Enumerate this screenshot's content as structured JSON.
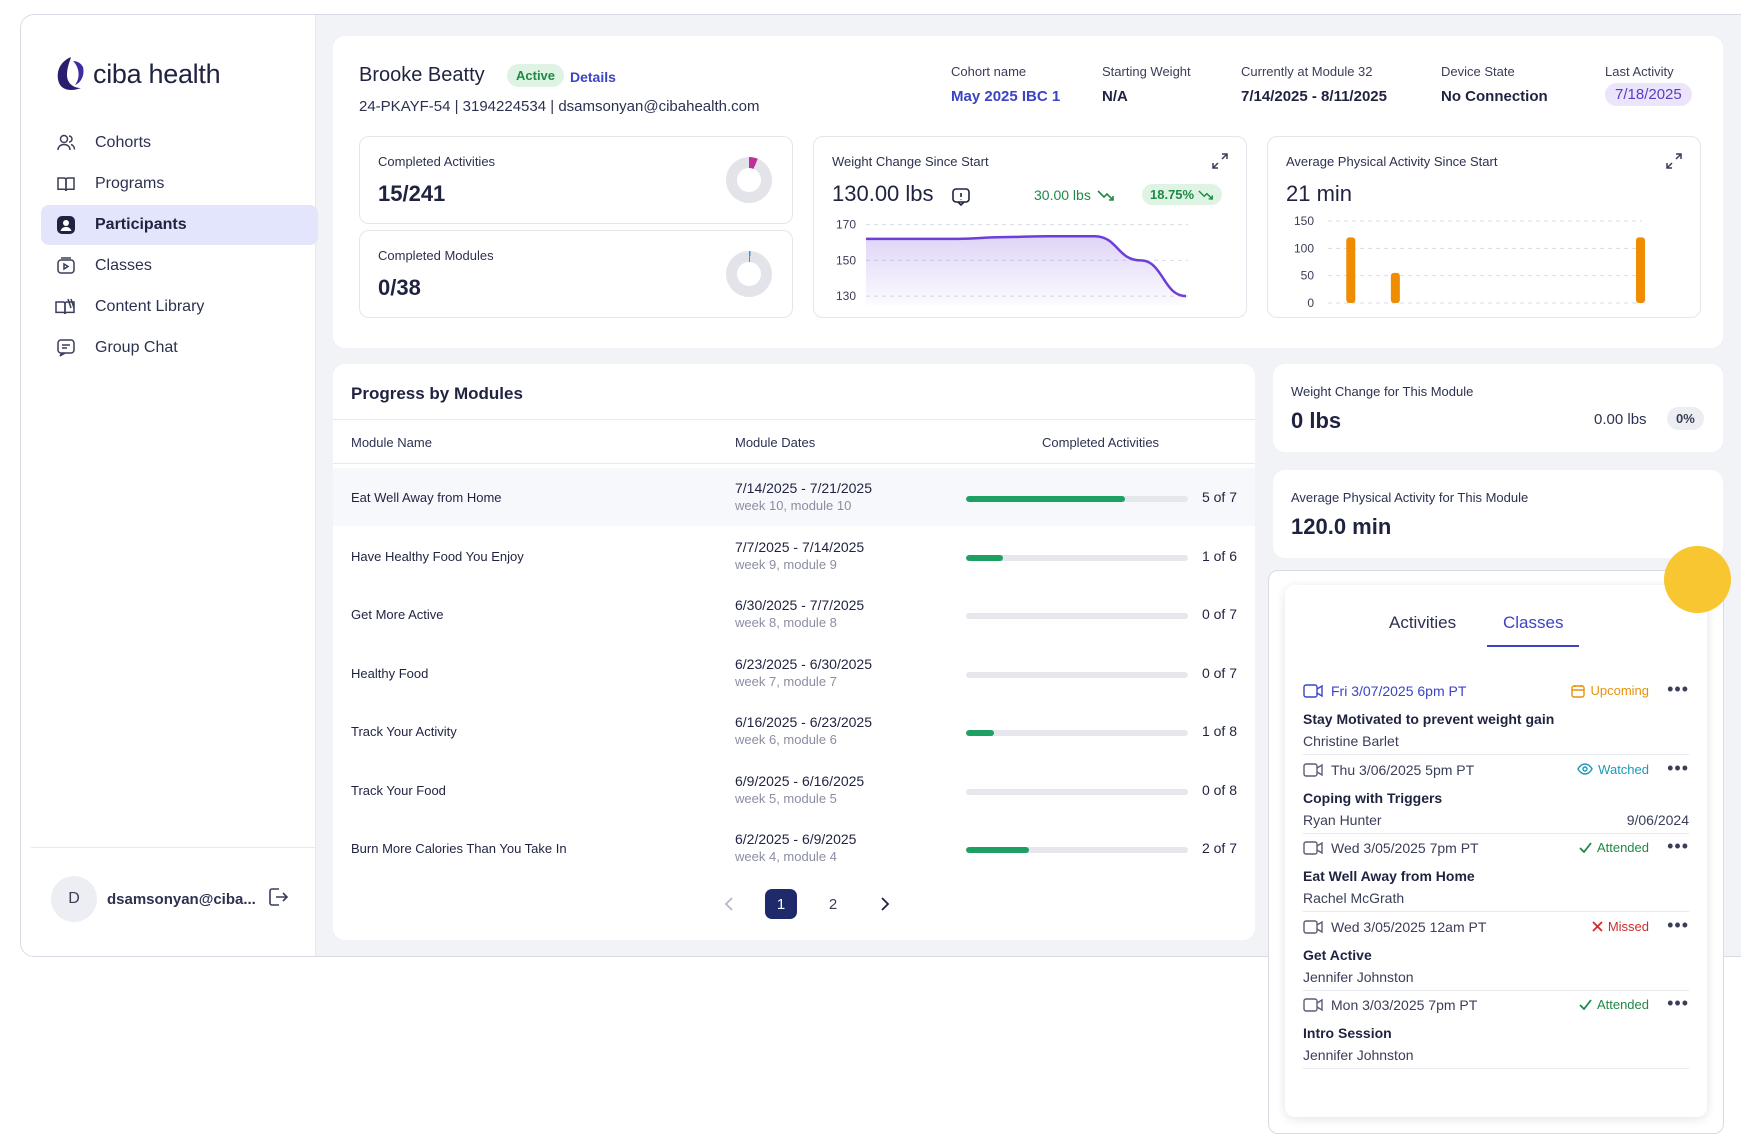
{
  "brand": {
    "name": "ciba health"
  },
  "nav": [
    {
      "label": "Cohorts",
      "icon": "users-icon",
      "active": false
    },
    {
      "label": "Programs",
      "icon": "book-icon",
      "active": false
    },
    {
      "label": "Participants",
      "icon": "user-circle-icon",
      "active": true
    },
    {
      "label": "Classes",
      "icon": "video-icon",
      "active": false
    },
    {
      "label": "Content Library",
      "icon": "library-icon",
      "active": false
    },
    {
      "label": "Group Chat",
      "icon": "chat-icon",
      "active": false
    }
  ],
  "user": {
    "initial": "D",
    "email": "dsamsonyan@ciba..."
  },
  "participant": {
    "name": "Brooke Beatty",
    "status": "Active",
    "details_label": "Details",
    "info": "24-PKAYF-54 | 3194224534 | dsamsonyan@cibahealth.com"
  },
  "meta": {
    "cohort_label": "Cohort name",
    "cohort_value": "May 2025 IBC 1",
    "weight_label": "Starting Weight",
    "weight_value": "N/A",
    "module_label": "Currently at Module 32",
    "module_value": "7/14/2025 - 8/11/2025",
    "device_label": "Device State",
    "device_value": "No Connection",
    "last_label": "Last Activity",
    "last_value": "7/18/2025"
  },
  "stats": {
    "activities_label": "Completed Activities",
    "activities_value": "15/241",
    "activities_fraction": 0.062,
    "modules_label": "Completed Modules",
    "modules_value": "0/38",
    "modules_fraction": 0.01
  },
  "weight_chart": {
    "label": "Weight Change Since Start",
    "value": "130.00 lbs",
    "change": "30.00 lbs",
    "percent": "18.75%",
    "ticks": [
      "170",
      "150",
      "130"
    ]
  },
  "activity_chart": {
    "label": "Average Physical Activity Since Start",
    "value": "21 min",
    "ticks": [
      "150",
      "100",
      "50",
      "0"
    ]
  },
  "chart_data": [
    {
      "type": "area",
      "title": "Weight Change Since Start",
      "x": [
        0,
        1,
        2,
        3,
        4,
        5,
        6,
        7
      ],
      "y": [
        162,
        162,
        162,
        163,
        163.5,
        163.5,
        150,
        130
      ],
      "ylim": [
        125,
        172
      ],
      "yticks": [
        170,
        150,
        130
      ],
      "color": "#6d3fd8"
    },
    {
      "type": "bar",
      "title": "Average Physical Activity Since Start",
      "x": [
        0,
        1,
        2,
        3,
        4,
        5,
        6,
        7,
        8,
        9,
        10,
        11,
        12,
        13,
        14
      ],
      "values": [
        0,
        120,
        0,
        55,
        0,
        0,
        0,
        0,
        0,
        0,
        0,
        0,
        0,
        0,
        120
      ],
      "ylim": [
        0,
        150
      ],
      "yticks": [
        150,
        100,
        50,
        0
      ],
      "color": "#f08c00"
    }
  ],
  "progress": {
    "title": "Progress by Modules",
    "headers": {
      "name": "Module Name",
      "dates": "Module Dates",
      "completed": "Completed Activities"
    },
    "rows": [
      {
        "name": "Eat Well Away from Home",
        "dates": "7/14/2025 - 7/21/2025",
        "sub": "week 10, module 10",
        "count": "5 of 7",
        "pct": 0.714
      },
      {
        "name": "Have Healthy Food You Enjoy",
        "dates": "7/7/2025 - 7/14/2025",
        "sub": "week 9, module 9",
        "count": "1 of 6",
        "pct": 0.167
      },
      {
        "name": "Get More Active",
        "dates": "6/30/2025 - 7/7/2025",
        "sub": "week 8, module 8",
        "count": "0 of 7",
        "pct": 0
      },
      {
        "name": "Healthy Food",
        "dates": "6/23/2025 - 6/30/2025",
        "sub": "week 7, module 7",
        "count": "0 of 7",
        "pct": 0
      },
      {
        "name": "Track Your Activity",
        "dates": "6/16/2025 - 6/23/2025",
        "sub": "week 6, module 6",
        "count": "1 of 8",
        "pct": 0.125
      },
      {
        "name": "Track Your Food",
        "dates": "6/9/2025 - 6/16/2025",
        "sub": "week 5, module 5",
        "count": "0 of 8",
        "pct": 0
      },
      {
        "name": "Burn More Calories Than You Take In",
        "dates": "6/2/2025 - 6/9/2025",
        "sub": "week 4, module 4",
        "count": "2 of 7",
        "pct": 0.286
      }
    ],
    "pages": [
      "1",
      "2"
    ],
    "current_page": "1"
  },
  "module_weight": {
    "label": "Weight Change for This Module",
    "value": "0 lbs",
    "secondary": "0.00 lbs",
    "percent": "0%"
  },
  "module_activity": {
    "label": "Average Physical Activity for This Module",
    "value": "120.0 min"
  },
  "popup": {
    "tabs": [
      "Activities",
      "Classes"
    ],
    "active_tab": "Classes",
    "classes": [
      {
        "date": "Fri 3/07/2025 6pm PT",
        "status": "Upcoming",
        "status_color": "#e8900c",
        "title": "Stay Motivated to prevent weight gain",
        "host": "Christine Barlet",
        "extra": ""
      },
      {
        "date": "Thu 3/06/2025 5pm PT",
        "status": "Watched",
        "status_color": "#1a9ab8",
        "title": "Coping with Triggers",
        "host": "Ryan Hunter",
        "extra": "9/06/2024"
      },
      {
        "date": "Wed 3/05/2025 7pm PT",
        "status": "Attended",
        "status_color": "#1e8a45",
        "title": "Eat Well Away from Home",
        "host": "Rachel McGrath",
        "extra": ""
      },
      {
        "date": "Wed 3/05/2025 12am PT",
        "status": "Missed",
        "status_color": "#d02c2c",
        "title": "Get Active",
        "host": "Jennifer Johnston",
        "extra": ""
      },
      {
        "date": "Mon 3/03/2025 7pm PT",
        "status": "Attended",
        "status_color": "#1e8a45",
        "title": "Intro Session",
        "host": "Jennifer Johnston",
        "extra": ""
      }
    ]
  }
}
